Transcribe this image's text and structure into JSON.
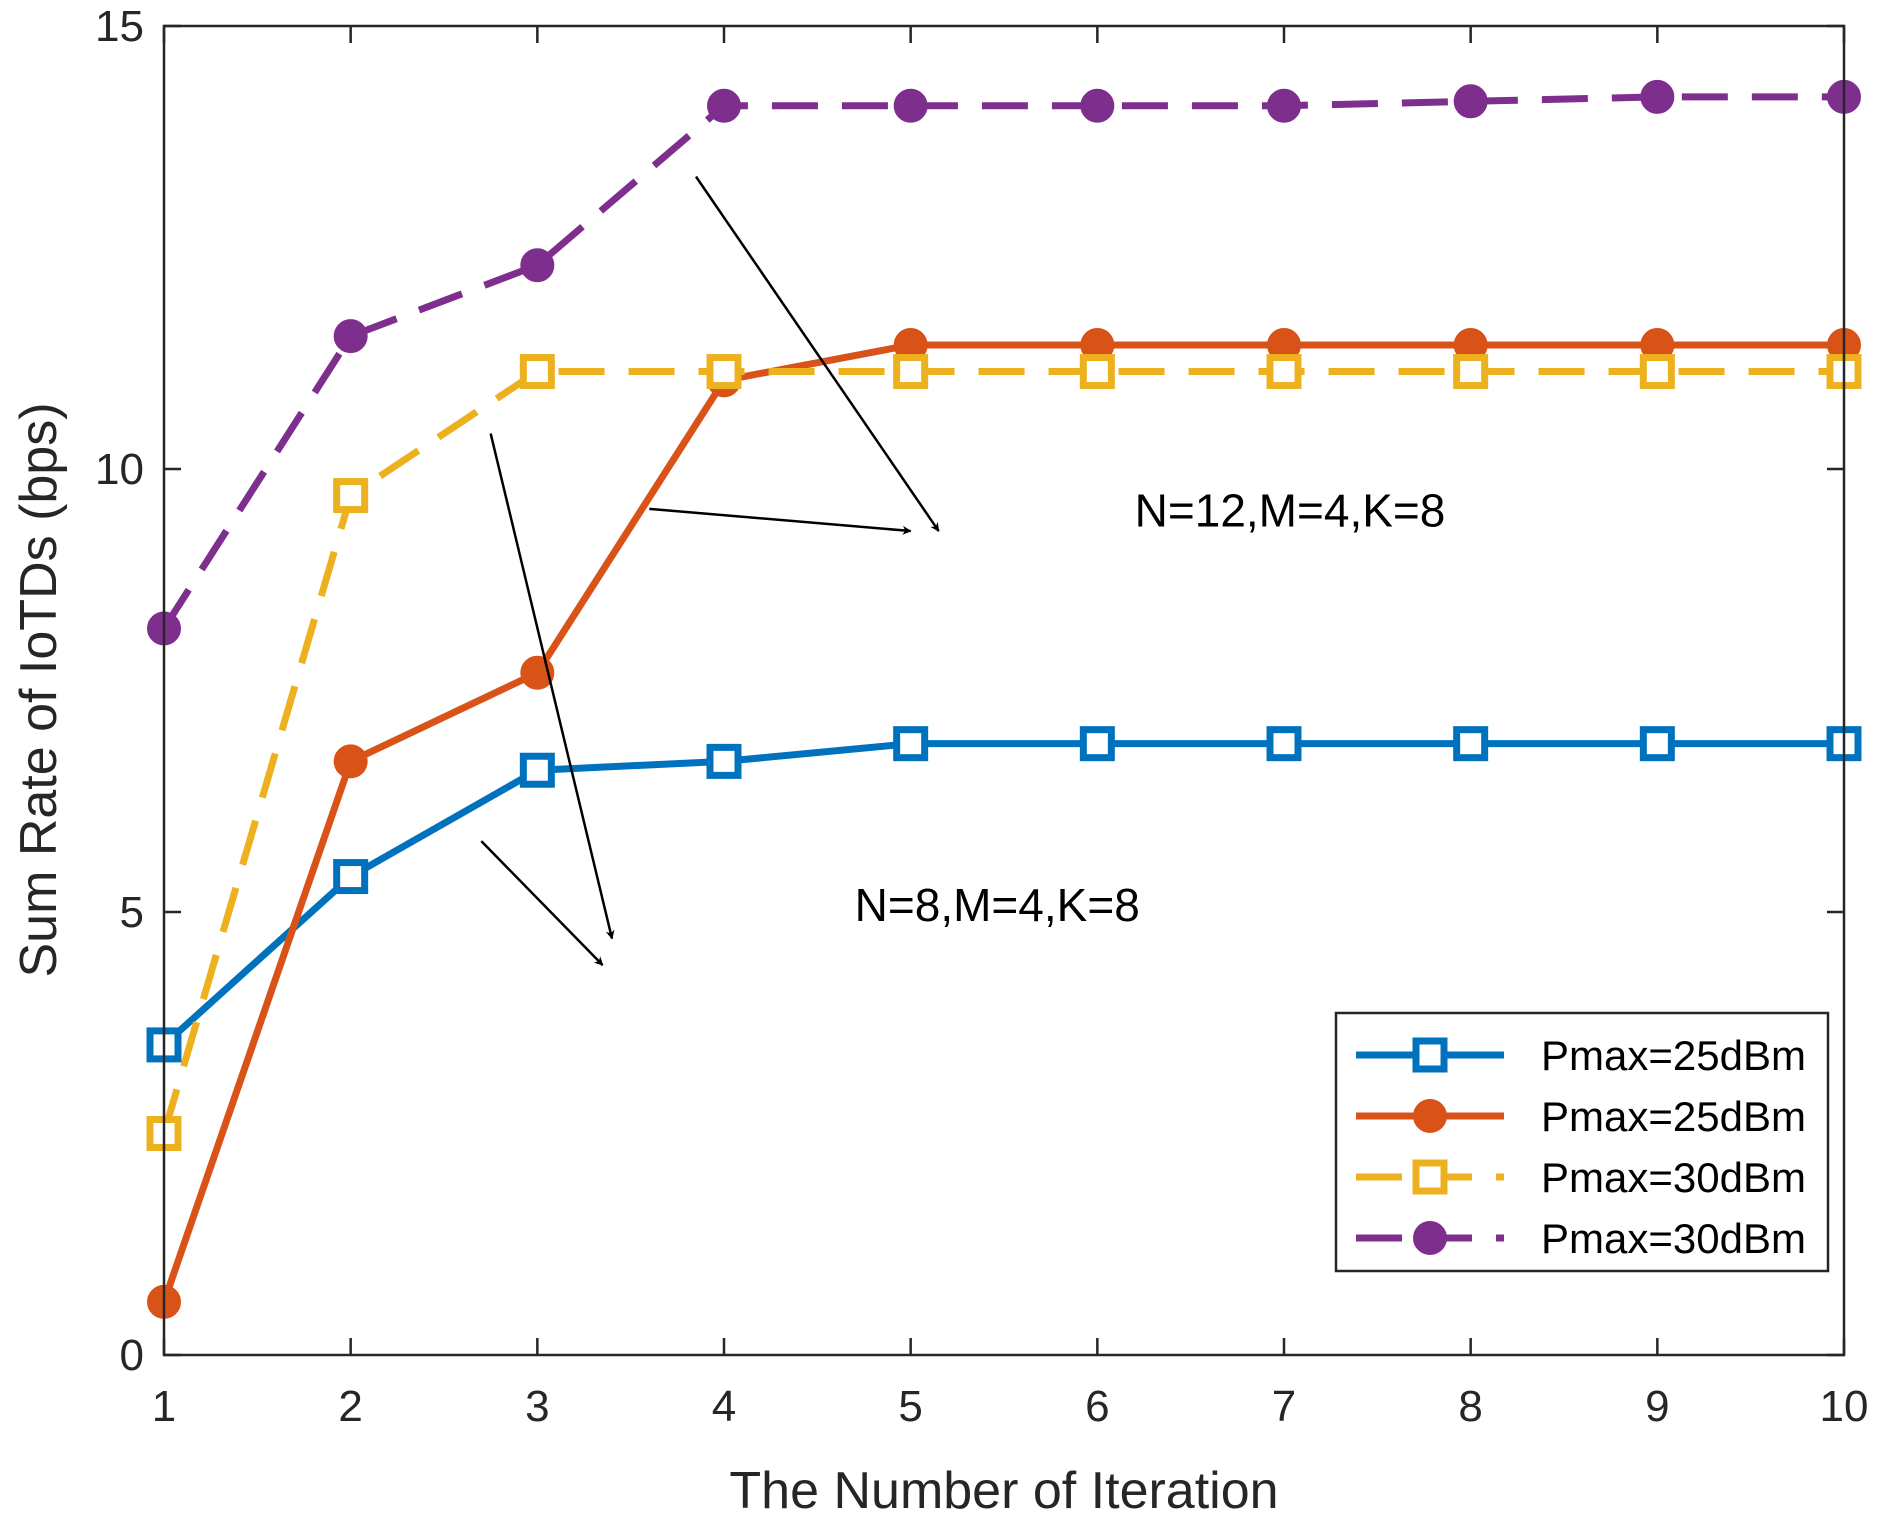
{
  "chart_data": {
    "type": "line",
    "title": "",
    "xlabel": "The Number of Iteration",
    "ylabel": "Sum Rate of IoTDs (bps)",
    "xlim": [
      1,
      10
    ],
    "ylim": [
      0,
      15
    ],
    "xticks": [
      1,
      2,
      3,
      4,
      5,
      6,
      7,
      8,
      9,
      10
    ],
    "yticks": [
      0,
      5,
      10,
      15
    ],
    "grid": false,
    "legend_position": "bottom-right",
    "x": [
      1,
      2,
      3,
      4,
      5,
      6,
      7,
      8,
      9,
      10
    ],
    "series": [
      {
        "name": "Pmax=25dBm",
        "group": "N=8,M=4,K=8",
        "color": "#0072BD",
        "line_style": "solid",
        "marker": "square",
        "values": [
          3.5,
          5.4,
          6.6,
          6.7,
          6.9,
          6.9,
          6.9,
          6.9,
          6.9,
          6.9
        ]
      },
      {
        "name": "Pmax=25dBm",
        "group": "N=12,M=4,K=8",
        "color": "#D95319",
        "line_style": "solid",
        "marker": "circle",
        "values": [
          0.6,
          6.7,
          7.7,
          11.0,
          11.4,
          11.4,
          11.4,
          11.4,
          11.4,
          11.4
        ]
      },
      {
        "name": "Pmax=30dBm",
        "group": "N=8,M=4,K=8",
        "color": "#EDB120",
        "line_style": "dashed",
        "marker": "square",
        "values": [
          2.5,
          9.7,
          11.1,
          11.1,
          11.1,
          11.1,
          11.1,
          11.1,
          11.1,
          11.1
        ]
      },
      {
        "name": "Pmax=30dBm",
        "group": "N=12,M=4,K=8",
        "color": "#7E2F8E",
        "line_style": "dashed",
        "marker": "circle",
        "values": [
          8.2,
          11.5,
          12.3,
          14.1,
          14.1,
          14.1,
          14.1,
          14.15,
          14.2,
          14.2
        ]
      }
    ],
    "annotations": [
      {
        "text": "N=12,M=4,K=8",
        "anchor": [
          6.2,
          9.35
        ],
        "arrows": [
          {
            "from": [
              3.85,
              13.3
            ],
            "to": [
              5.15,
              9.3
            ]
          },
          {
            "from": [
              3.6,
              9.55
            ],
            "to": [
              5.0,
              9.3
            ]
          }
        ]
      },
      {
        "text": "N=8,M=4,K=8",
        "anchor": [
          4.7,
          4.9
        ],
        "arrows": [
          {
            "from": [
              2.75,
              10.4
            ],
            "to": [
              3.4,
              4.7
            ]
          },
          {
            "from": [
              2.7,
              5.8
            ],
            "to": [
              3.35,
              4.4
            ]
          }
        ]
      }
    ]
  }
}
